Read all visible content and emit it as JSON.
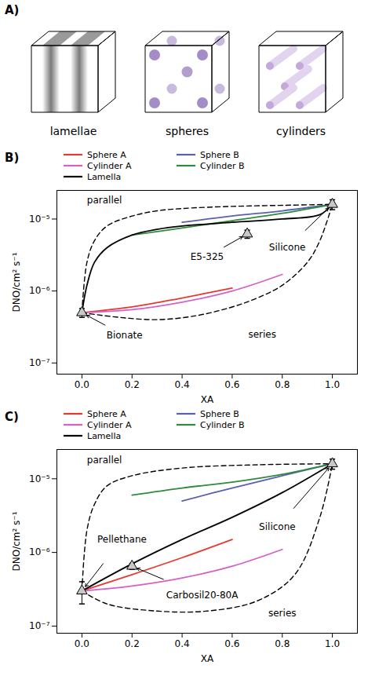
{
  "diagram": {
    "label": "A)",
    "items": [
      "lamellae",
      "spheres",
      "cylinders"
    ]
  },
  "chart_data": [
    {
      "type": "line",
      "panel_label": "B)",
      "xlabel": "XA",
      "ylabel": "DNO/cm² s⁻¹",
      "log": "y",
      "legend": "top",
      "xlim": [
        -0.1,
        1.1
      ],
      "ylim": [
        7e-08,
        2.5e-05
      ],
      "xticks": [
        {
          "value": 0,
          "label": "0.0"
        },
        {
          "value": 0.2,
          "label": "0.2"
        },
        {
          "value": 0.4,
          "label": "0.4"
        },
        {
          "value": 0.6,
          "label": "0.6"
        },
        {
          "value": 0.8,
          "label": "0.8"
        },
        {
          "value": 1,
          "label": "1.0"
        }
      ],
      "yticks": [
        {
          "value": 1e-07,
          "label": "10⁻⁷"
        },
        {
          "value": 1e-06,
          "label": "10⁻⁶"
        },
        {
          "value": 1e-05,
          "label": "10⁻⁵"
        }
      ],
      "series": [
        {
          "name": "Sphere A",
          "color": "#e8382f",
          "line_style": "solid",
          "x": [
            0,
            0.2,
            0.4,
            0.6
          ],
          "values": [
            5e-07,
            6e-07,
            8e-07,
            1.1e-06
          ]
        },
        {
          "name": "Sphere B",
          "color": "#5b5fb0",
          "line_style": "solid",
          "x": [
            0.4,
            0.6,
            0.8,
            1.0
          ],
          "values": [
            9e-06,
            1.1e-05,
            1.3e-05,
            1.6e-05
          ]
        },
        {
          "name": "Cylinder A",
          "color": "#d65fc8",
          "line_style": "solid",
          "x": [
            0,
            0.2,
            0.4,
            0.6,
            0.8
          ],
          "values": [
            5e-07,
            5.5e-07,
            7e-07,
            1e-06,
            1.7e-06
          ]
        },
        {
          "name": "Cylinder B",
          "color": "#2e8b3e",
          "line_style": "solid",
          "x": [
            0.2,
            0.4,
            0.6,
            0.8,
            1.0
          ],
          "values": [
            6e-06,
            7.5e-06,
            9.5e-06,
            1.2e-05,
            1.6e-05
          ]
        },
        {
          "name": "Lamella",
          "color": "#000000",
          "line_style": "solid",
          "x": [
            0,
            0.02,
            0.05,
            0.1,
            0.2,
            0.3,
            0.4,
            0.6,
            0.8,
            0.95,
            1.0
          ],
          "values": [
            5e-07,
            1.2e-06,
            2.5e-06,
            4e-06,
            6e-06,
            7.2e-06,
            8e-06,
            9e-06,
            1e-05,
            1.15e-05,
            1.6e-05
          ]
        },
        {
          "color": "#000000",
          "line_style": "dashed",
          "x": [
            0,
            0.02,
            0.05,
            0.1,
            0.2,
            0.3,
            0.4,
            0.6,
            0.8,
            1.0
          ],
          "values": [
            5e-07,
            2.5e-06,
            5e-06,
            8e-06,
            1.1e-05,
            1.3e-05,
            1.4e-05,
            1.5e-05,
            1.55e-05,
            1.6e-05
          ]
        },
        {
          "color": "#000000",
          "line_style": "dashed",
          "x": [
            0,
            0.15,
            0.3,
            0.45,
            0.6,
            0.7,
            0.8,
            0.9,
            0.95,
            1.0
          ],
          "values": [
            5e-07,
            4.3e-07,
            4e-07,
            4.5e-07,
            6e-07,
            8e-07,
            1.2e-06,
            2.5e-06,
            5e-06,
            1.6e-05
          ]
        }
      ],
      "points": [
        {
          "name": "Bionate",
          "x": 0,
          "y": 5e-07,
          "yerr": 7e-08,
          "marker": "triangle"
        },
        {
          "name": "E5-325",
          "x": 0.66,
          "y": 6.2e-06,
          "yerr": 8e-07,
          "marker": "triangle"
        },
        {
          "name": "Silicone",
          "x": 1.0,
          "y": 1.6e-05,
          "yerr": 2.5e-06,
          "marker": "triangle"
        }
      ],
      "annotations": [
        {
          "text": "parallel",
          "x": 0.09,
          "y": 1.8e-05
        },
        {
          "text": "series",
          "x": 0.72,
          "y": 2.5e-07
        },
        {
          "text": "Bionate",
          "x": 0.17,
          "y": 2.4e-07
        },
        {
          "text": "E5-325",
          "x": 0.5,
          "y": 3e-06
        },
        {
          "text": "Silicone",
          "x": 0.82,
          "y": 4e-06
        }
      ]
    },
    {
      "type": "line",
      "panel_label": "C)",
      "xlabel": "XA",
      "ylabel": "DNO/cm² s⁻¹",
      "log": "y",
      "legend": "top",
      "xlim": [
        -0.1,
        1.1
      ],
      "ylim": [
        8e-08,
        2.5e-05
      ],
      "xticks": [
        {
          "value": 0,
          "label": "0.0"
        },
        {
          "value": 0.2,
          "label": "0.2"
        },
        {
          "value": 0.4,
          "label": "0.4"
        },
        {
          "value": 0.6,
          "label": "0.6"
        },
        {
          "value": 0.8,
          "label": "0.8"
        },
        {
          "value": 1,
          "label": "1.0"
        }
      ],
      "yticks": [
        {
          "value": 1e-07,
          "label": "10⁻⁷"
        },
        {
          "value": 1e-06,
          "label": "10⁻⁶"
        },
        {
          "value": 1e-05,
          "label": "10⁻⁵"
        }
      ],
      "series": [
        {
          "name": "Sphere A",
          "color": "#e8382f",
          "line_style": "solid",
          "x": [
            0,
            0.2,
            0.4,
            0.6
          ],
          "values": [
            3e-07,
            5e-07,
            8.5e-07,
            1.5e-06
          ]
        },
        {
          "name": "Sphere B",
          "color": "#5b5fb0",
          "line_style": "solid",
          "x": [
            0.4,
            0.6,
            0.8,
            1.0
          ],
          "values": [
            5e-06,
            7.5e-06,
            1.1e-05,
            1.6e-05
          ]
        },
        {
          "name": "Cylinder A",
          "color": "#d65fc8",
          "line_style": "solid",
          "x": [
            0,
            0.2,
            0.4,
            0.6,
            0.8
          ],
          "values": [
            3e-07,
            3.5e-07,
            4.5e-07,
            6.5e-07,
            1.1e-06
          ]
        },
        {
          "name": "Cylinder B",
          "color": "#2e8b3e",
          "line_style": "solid",
          "x": [
            0.2,
            0.4,
            0.6,
            0.8,
            1.0
          ],
          "values": [
            6e-06,
            7.5e-06,
            9e-06,
            1.15e-05,
            1.6e-05
          ]
        },
        {
          "name": "Lamella",
          "color": "#000000",
          "line_style": "solid",
          "x": [
            0,
            0.2,
            0.4,
            0.6,
            0.8,
            1.0
          ],
          "values": [
            3e-07,
            7e-07,
            1.5e-06,
            3e-06,
            6.5e-06,
            1.6e-05
          ]
        },
        {
          "color": "#000000",
          "line_style": "dashed",
          "x": [
            0,
            0.02,
            0.05,
            0.1,
            0.2,
            0.4,
            0.7,
            1.0
          ],
          "values": [
            3e-07,
            2e-06,
            4.5e-06,
            8e-06,
            1.1e-05,
            1.4e-05,
            1.55e-05,
            1.6e-05
          ]
        },
        {
          "color": "#000000",
          "line_style": "dashed",
          "x": [
            0,
            0.1,
            0.3,
            0.5,
            0.7,
            0.85,
            0.95,
            1.0
          ],
          "values": [
            3e-07,
            2e-07,
            1.6e-07,
            1.6e-07,
            2.2e-07,
            5e-07,
            3e-06,
            1.6e-05
          ]
        }
      ],
      "points": [
        {
          "name": "Pellethane",
          "x": 0,
          "y": 3e-07,
          "yerr": 1e-07,
          "marker": "triangle"
        },
        {
          "name": "Carbosil20-80A",
          "x": 0.2,
          "y": 6.5e-07,
          "yerr": 6e-08,
          "marker": "triangle"
        },
        {
          "name": "Silicone",
          "x": 1.0,
          "y": 1.6e-05,
          "yerr": 2.5e-06,
          "marker": "triangle"
        }
      ],
      "annotations": [
        {
          "text": "parallel",
          "x": 0.09,
          "y": 1.8e-05
        },
        {
          "text": "series",
          "x": 0.8,
          "y": 1.5e-07
        },
        {
          "text": "Pellethane",
          "x": 0.16,
          "y": 1.5e-06
        },
        {
          "text": "Carbosil20-80A",
          "x": 0.48,
          "y": 2.6e-07
        },
        {
          "text": "Silicone",
          "x": 0.78,
          "y": 2.2e-06
        }
      ]
    }
  ]
}
